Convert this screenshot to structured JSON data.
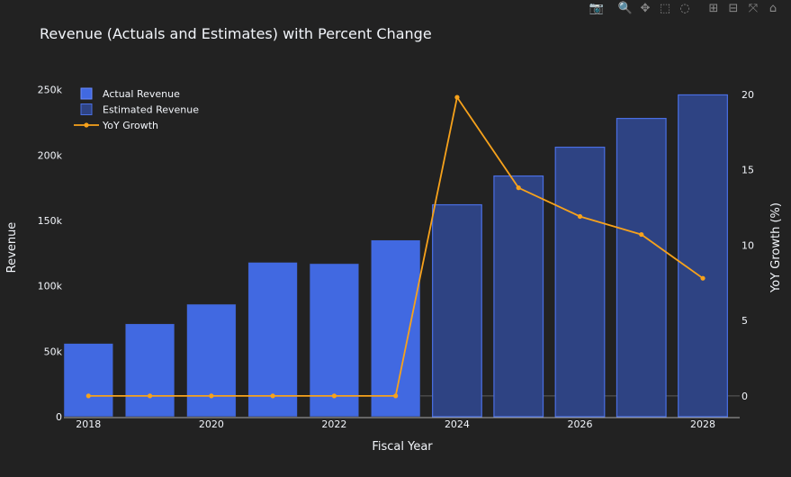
{
  "toolbar": {
    "buttons": [
      {
        "name": "camera-icon",
        "glyph": "📷"
      },
      {
        "name": "zoom-icon",
        "glyph": "🔍"
      },
      {
        "name": "pan-icon",
        "glyph": "✥"
      },
      {
        "name": "box-select-icon",
        "glyph": "⬚"
      },
      {
        "name": "lasso-select-icon",
        "glyph": "◌"
      },
      {
        "name": "zoom-in-icon",
        "glyph": "⊞"
      },
      {
        "name": "zoom-out-icon",
        "glyph": "⊟"
      },
      {
        "name": "autoscale-icon",
        "glyph": "⤧"
      },
      {
        "name": "reset-axes-icon",
        "glyph": "⌂"
      }
    ]
  },
  "chart_data": {
    "type": "bar",
    "title": "Revenue (Actuals and Estimates) with Percent Change",
    "xlabel": "Fiscal Year",
    "ylabel": "Revenue",
    "y2label": "YoY Growth (%)",
    "x": [
      2018,
      2019,
      2020,
      2021,
      2022,
      2023,
      2024,
      2025,
      2026,
      2027,
      2028
    ],
    "x_ticks": [
      "2018",
      "2020",
      "2022",
      "2024",
      "2026",
      "2028"
    ],
    "y_ticks": [
      "0",
      "50k",
      "100k",
      "150k",
      "200k",
      "250k"
    ],
    "y2_ticks": [
      "0",
      "5",
      "10",
      "15",
      "20"
    ],
    "ylim": [
      0,
      258000
    ],
    "y2lim": [
      -1.38,
      21
    ],
    "legend_position": "top-left",
    "series": [
      {
        "name": "Actual Revenue",
        "type": "bar",
        "color": "#4169e1",
        "x": [
          2018,
          2019,
          2020,
          2021,
          2022,
          2023
        ],
        "values": [
          56000,
          71000,
          86000,
          118000,
          117000,
          135000
        ]
      },
      {
        "name": "Estimated Revenue",
        "type": "bar",
        "color": "#2e4383",
        "border": "#4a6fe3",
        "x": [
          2024,
          2025,
          2026,
          2027,
          2028
        ],
        "values": [
          162000,
          184000,
          206000,
          228000,
          246000
        ]
      },
      {
        "name": "YoY Growth",
        "type": "line",
        "axis": "y2",
        "color": "#f7a21b",
        "x": [
          2018,
          2019,
          2020,
          2021,
          2022,
          2023,
          2024,
          2025,
          2026,
          2027,
          2028
        ],
        "values": [
          0,
          0,
          0,
          0,
          0,
          0,
          19.8,
          13.8,
          11.9,
          10.7,
          7.8
        ]
      }
    ]
  }
}
